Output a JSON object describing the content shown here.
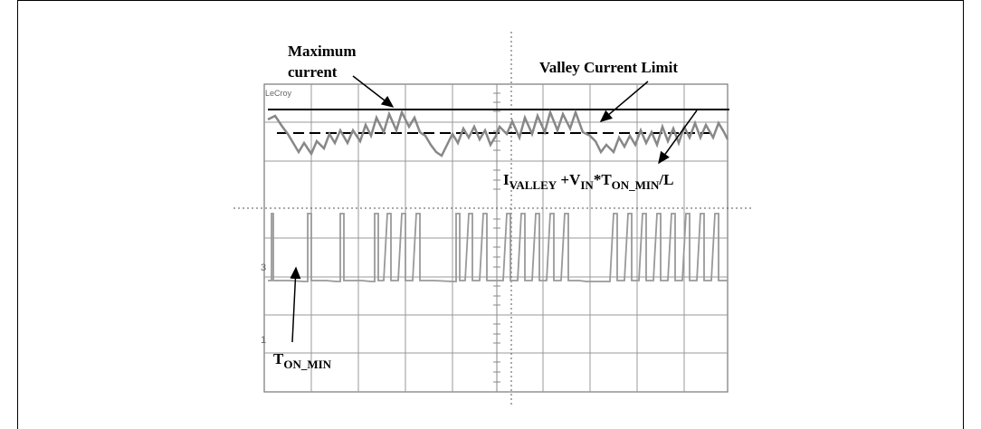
{
  "labels": {
    "max_current_line1": "Maximum",
    "max_current_line2": "current",
    "valley_limit": "Valley Current Limit",
    "formula": {
      "i": "I",
      "valley_sub": "VALLEY",
      "plus_v": " +V",
      "in_sub": "IN",
      "star_t": "*T",
      "ton_sub": "ON_MIN",
      "tail": "/L"
    },
    "ton_min": {
      "t": "T",
      "sub": "ON_MIN"
    }
  },
  "scope": {
    "brand": "LeCroy",
    "channel_marker_3": "3",
    "channel_marker_1": "1"
  }
}
